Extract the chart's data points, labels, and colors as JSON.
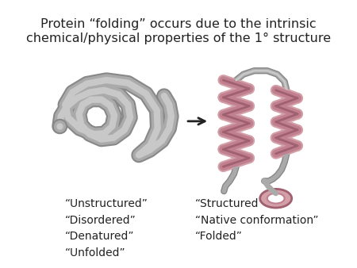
{
  "title_line1": "Protein “folding” occurs due to the intrinsic",
  "title_line2": "chemical/physical properties of the 1° structure",
  "left_labels": [
    "“Unstructured”",
    "“Disordered”",
    "“Denatured”",
    "“Unfolded”"
  ],
  "right_labels": [
    "“Structured”",
    "“Native conformation”",
    "“Folded”"
  ],
  "bg_color": "#ffffff",
  "text_color": "#222222",
  "gray_light": "#c8c8c8",
  "gray_mid": "#aaaaaa",
  "gray_dark": "#888888",
  "pink_light": "#d4a0a8",
  "pink_mid": "#c08090",
  "pink_dark": "#a06070",
  "arrow_color": "#222222",
  "title_fontsize": 11.5,
  "label_fontsize": 10
}
